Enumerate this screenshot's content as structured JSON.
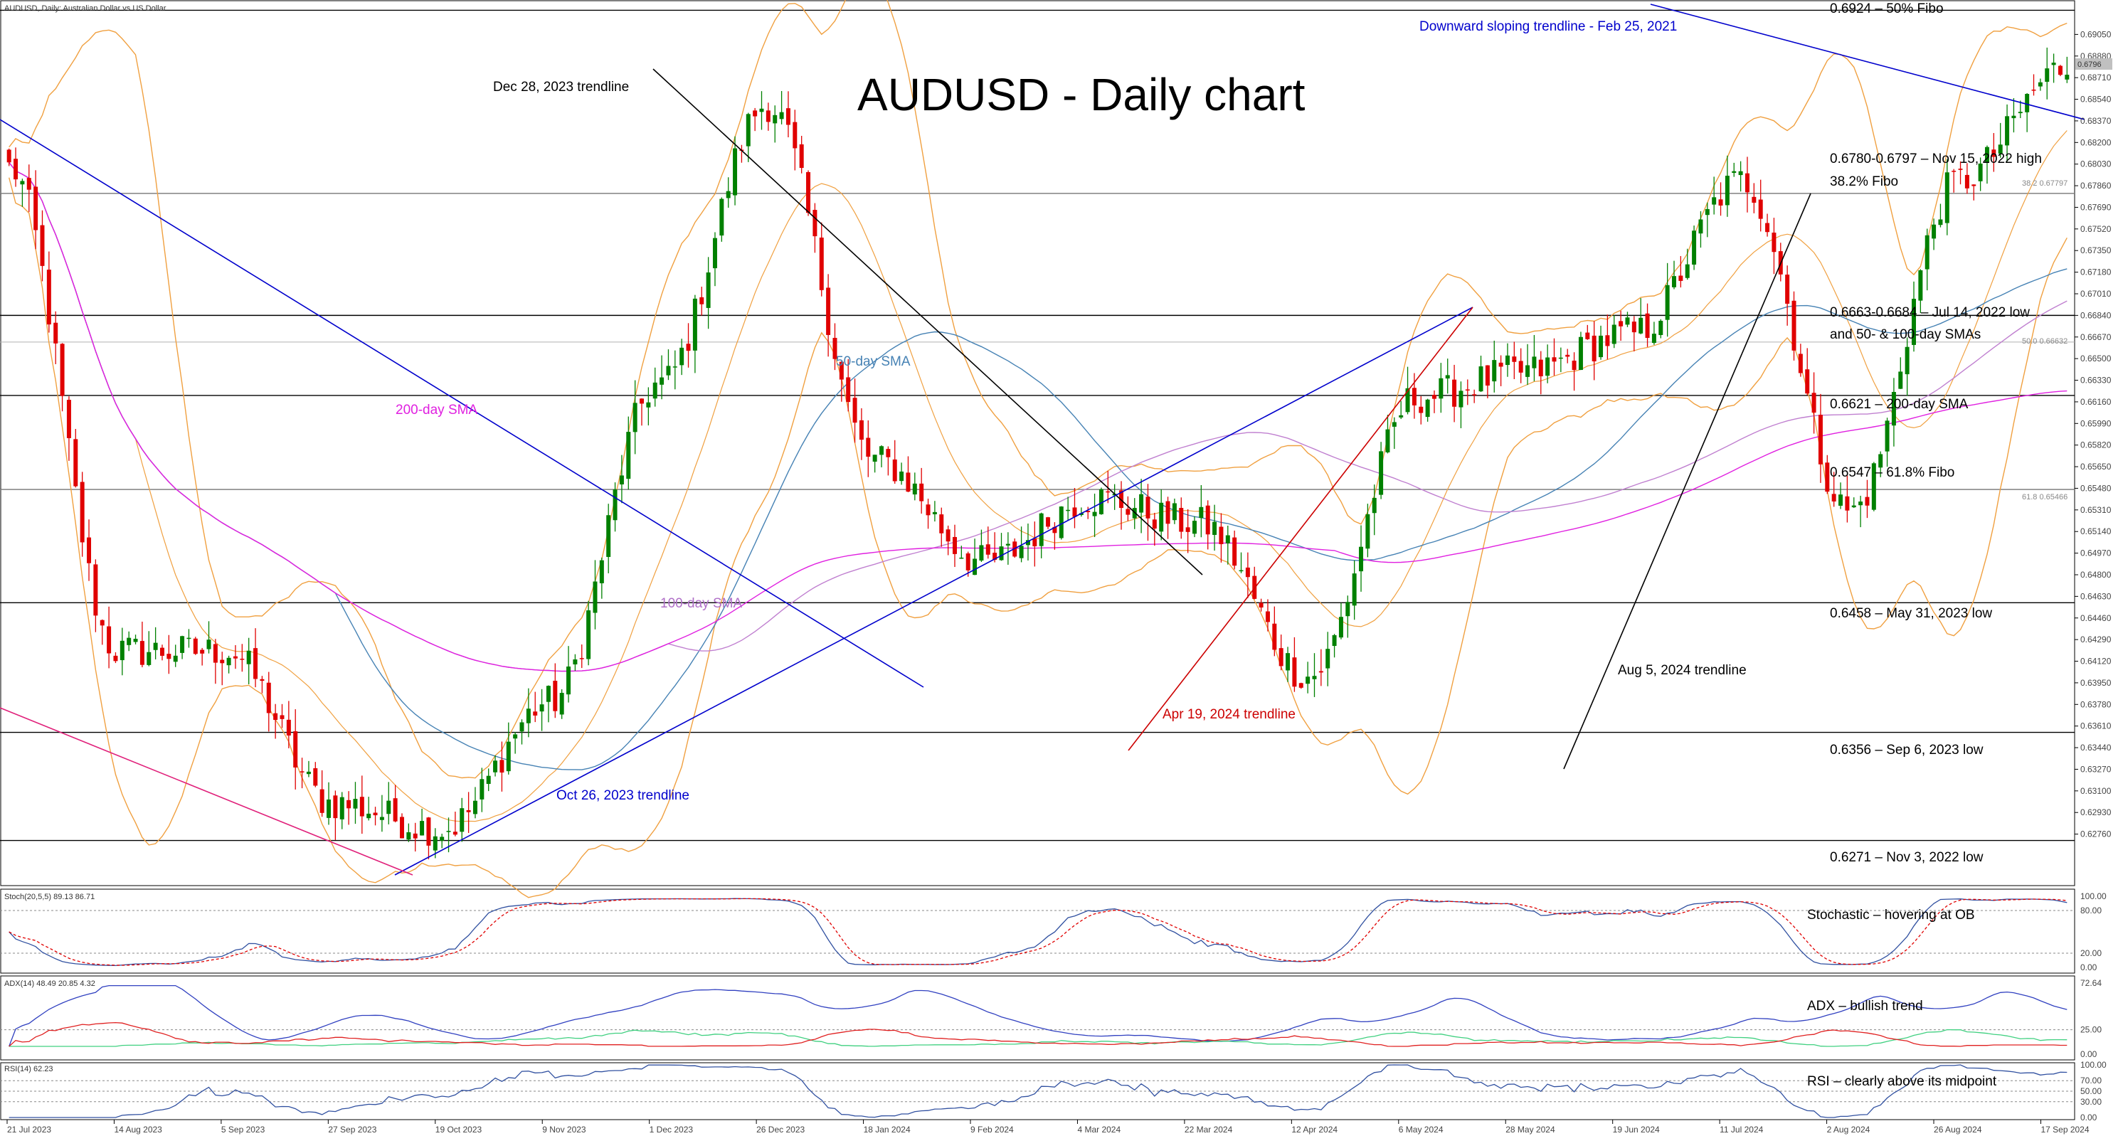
{
  "chart_data": {
    "type": "candlestick",
    "symbol": "AUDUSD, Daily:  Australian Dollar vs US Dollar",
    "title": "AUDUSD - Daily chart",
    "price_axis": {
      "ticks": [
        "0.69050",
        "0.68880",
        "0.68710",
        "0.68540",
        "0.68370",
        "0.68200",
        "0.68030",
        "0.67860",
        "0.67690",
        "0.67520",
        "0.67350",
        "0.67180",
        "0.67010",
        "0.66840",
        "0.66670",
        "0.66500",
        "0.66330",
        "0.66160",
        "0.65990",
        "0.65820",
        "0.65650",
        "0.65480",
        "0.65310",
        "0.65140",
        "0.64970",
        "0.64800",
        "0.64630",
        "0.64460",
        "0.64290",
        "0.64120",
        "0.63950",
        "0.63780",
        "0.63610",
        "0.63440",
        "0.63270",
        "0.63100",
        "0.62930",
        "0.62760"
      ],
      "range": [
        0.6245,
        0.6922
      ],
      "current_price": "0.6796"
    },
    "date_axis": [
      "21 Jul 2023",
      "14 Aug 2023",
      "5 Sep 2023",
      "27 Sep 2023",
      "19 Oct 2023",
      "9 Nov 2023",
      "1 Dec 2023",
      "26 Dec 2023",
      "18 Jan 2024",
      "9 Feb 2024",
      "4 Mar 2024",
      "22 Mar 2024",
      "12 Apr 2024",
      "6 May 2024",
      "28 May 2024",
      "19 Jun 2024",
      "11 Jul 2024",
      "2 Aug 2024",
      "26 Aug 2024",
      "17 Sep 2024"
    ],
    "anchors": [
      {
        "date": "21 Jul 2023",
        "close": 0.68
      },
      {
        "date": "14 Aug 2023",
        "close": 0.642
      },
      {
        "date": "5 Sep 2023",
        "close": 0.642
      },
      {
        "date": "27 Sep 2023",
        "close": 0.63
      },
      {
        "date": "19 Oct 2023",
        "close": 0.628
      },
      {
        "date": "9 Nov 2023",
        "close": 0.638
      },
      {
        "date": "1 Dec 2023",
        "close": 0.663
      },
      {
        "date": "26 Dec 2023",
        "close": 0.685
      },
      {
        "date": "18 Jan 2024",
        "close": 0.657
      },
      {
        "date": "9 Feb 2024",
        "close": 0.649
      },
      {
        "date": "4 Mar 2024",
        "close": 0.654
      },
      {
        "date": "22 Mar 2024",
        "close": 0.652
      },
      {
        "date": "12 Apr 2024",
        "close": 0.64
      },
      {
        "date": "6 May 2024",
        "close": 0.662
      },
      {
        "date": "28 May 2024",
        "close": 0.664
      },
      {
        "date": "19 Jun 2024",
        "close": 0.667
      },
      {
        "date": "11 Jul 2024",
        "close": 0.679
      },
      {
        "date": "2 Aug 2024",
        "close": 0.653
      },
      {
        "date": "26 Aug 2024",
        "close": 0.679
      },
      {
        "date": "17 Sep 2024",
        "close": 0.688
      }
    ],
    "horizontal_levels": [
      {
        "price": 0.6924,
        "label": "0.6924 – 50% Fibo"
      },
      {
        "price": 0.678,
        "label": "0.6780-0.6797 – Nov 15, 2022 high"
      },
      {
        "price": 0.678,
        "label": "38.2% Fibo"
      },
      {
        "price": 0.6684,
        "label": "0.6663-0.6684 – Jul 14, 2022 low"
      },
      {
        "price": 0.6684,
        "label": "and 50- & 100-day SMAs"
      },
      {
        "price": 0.6621,
        "label": "0.6621 – 200-day SMA"
      },
      {
        "price": 0.6547,
        "label": "0.6547 – 61.8% Fibo"
      },
      {
        "price": 0.6458,
        "label": "0.6458 – May 31, 2023 low"
      },
      {
        "price": 0.6356,
        "label": "0.6356 – Sep 6, 2023 low"
      },
      {
        "price": 0.6271,
        "label": "0.6271 – Nov 3, 2022 low"
      }
    ],
    "fib_tags": [
      "38.2 0.67797",
      "50.0 0.66632",
      "61.8 0.65466"
    ],
    "trendlines": [
      {
        "label": "Downward sloping trendline - Feb 25, 2021",
        "color": "#0000cc"
      },
      {
        "label": "Dec 28, 2023 trendline",
        "color": "#000000"
      },
      {
        "label": "Oct 26, 2023 trendline",
        "color": "#0000cc"
      },
      {
        "label": "Apr 19, 2024 trendline",
        "color": "#cc0000"
      },
      {
        "label": "Aug 5, 2024 trendline",
        "color": "#000000"
      }
    ],
    "sma_labels": [
      {
        "label": "50-day SMA",
        "color": "#4682b4"
      },
      {
        "label": "100-day SMA",
        "color": "#b070c8"
      },
      {
        "label": "200-day SMA",
        "color": "#e020e0"
      }
    ],
    "indicators": [
      {
        "name": "Stoch(20,5,5) 89.13 86.71",
        "note": "Stochastic – hovering at OB",
        "ticks": [
          "100.00",
          "80.00",
          "20.00",
          "0.00"
        ]
      },
      {
        "name": "ADX(14) 48.49 20.85 4.32",
        "note": "ADX – bullish trend",
        "ticks": [
          "72.64",
          "25.00",
          "0.00"
        ]
      },
      {
        "name": "RSI(14) 62.23",
        "note": "RSI – clearly above its midpoint",
        "ticks": [
          "100.00",
          "70.00",
          "50.00",
          "30.00",
          "0.00"
        ]
      }
    ],
    "colors": {
      "up": "#008000",
      "down": "#e00000",
      "bollinger": "#f0a040",
      "sma50": "#4682b4",
      "sma100": "#c080d0",
      "sma200": "#e020e0",
      "stoch_main": "#3050a0",
      "stoch_signal": "#e00000",
      "adx": "#3040c0",
      "plus_di": "#40d080",
      "minus_di": "#e02020",
      "rsi": "#3050a0"
    }
  }
}
